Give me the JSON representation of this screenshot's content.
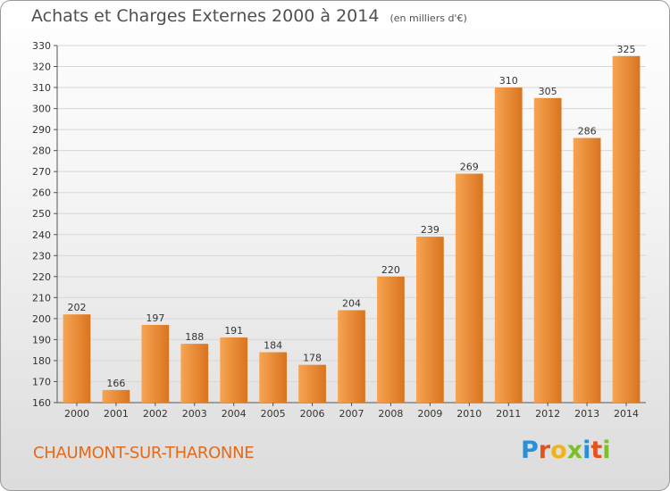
{
  "header": {
    "title": "Achats et Charges Externes 2000 à 2014",
    "unit": "(en milliers d'€)"
  },
  "footer": {
    "commune": "CHAUMONT-SUR-THARONNE",
    "brand": {
      "letters": [
        "P",
        "r",
        "o",
        "x",
        "i",
        "t",
        "i"
      ],
      "colors": [
        "#2a8fd6",
        "#e8501e",
        "#f2b21a",
        "#7cbf27",
        "#2a8fd6",
        "#e8501e",
        "#7cbf27"
      ]
    }
  },
  "colors": {
    "bar_light": "#f7a452",
    "bar_dark": "#d9741f",
    "city": "#e46a1b"
  },
  "chart_data": {
    "type": "bar",
    "title": "Achats et Charges Externes 2000 à 2014",
    "subtitle": "(en milliers d'€)",
    "xlabel": "",
    "ylabel": "",
    "categories": [
      "2000",
      "2001",
      "2002",
      "2003",
      "2004",
      "2005",
      "2006",
      "2007",
      "2008",
      "2009",
      "2010",
      "2011",
      "2012",
      "2013",
      "2014"
    ],
    "values": [
      202,
      166,
      197,
      188,
      191,
      184,
      178,
      204,
      220,
      239,
      269,
      310,
      305,
      286,
      325
    ],
    "ylim": [
      160,
      330
    ],
    "yticks": [
      160,
      170,
      180,
      190,
      200,
      210,
      220,
      230,
      240,
      250,
      260,
      270,
      280,
      290,
      300,
      310,
      320,
      330
    ],
    "grid": true,
    "legend": "none"
  }
}
